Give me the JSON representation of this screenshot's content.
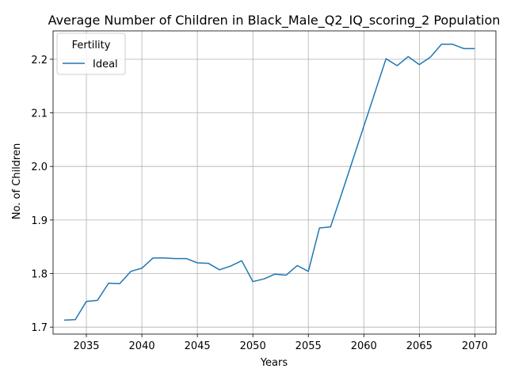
{
  "chart_data": {
    "type": "line",
    "title": "Average Number of Children in Black_Male_Q2_IQ_scoring_2 Population",
    "xlabel": "Years",
    "ylabel": "No. of Children",
    "xlim": [
      2032.0,
      2071.9
    ],
    "ylim": [
      1.687,
      2.253
    ],
    "x_ticks": [
      2035,
      2040,
      2045,
      2050,
      2055,
      2060,
      2065,
      2070
    ],
    "y_ticks": [
      1.7,
      1.8,
      1.9,
      2.0,
      2.1,
      2.2
    ],
    "x_tick_labels": [
      "2035",
      "2040",
      "2045",
      "2050",
      "2055",
      "2060",
      "2065",
      "2070"
    ],
    "y_tick_labels": [
      "1.7",
      "1.8",
      "1.9",
      "2.0",
      "2.1",
      "2.2"
    ],
    "grid": true,
    "legend": {
      "title": "Fertility",
      "placement": "top-left"
    },
    "series": [
      {
        "name": "Ideal",
        "color": "#1f77b4",
        "x": [
          2033,
          2034,
          2035,
          2036,
          2037,
          2038,
          2039,
          2040,
          2041,
          2042,
          2043,
          2044,
          2045,
          2046,
          2047,
          2048,
          2049,
          2050,
          2051,
          2052,
          2053,
          2054,
          2055,
          2056,
          2057,
          2058,
          2059,
          2060,
          2061,
          2062,
          2063,
          2064,
          2065,
          2066,
          2067,
          2068,
          2069,
          2070
        ],
        "y": [
          1.713,
          1.714,
          1.748,
          1.75,
          1.782,
          1.781,
          1.804,
          1.81,
          1.829,
          1.829,
          1.828,
          1.828,
          1.82,
          1.819,
          1.807,
          1.814,
          1.824,
          1.785,
          1.79,
          1.799,
          1.797,
          1.815,
          1.804,
          1.885,
          1.887,
          1.949,
          2.012,
          2.075,
          2.138,
          2.201,
          2.188,
          2.205,
          2.19,
          2.204,
          2.228,
          2.228,
          2.22,
          2.22
        ]
      }
    ]
  }
}
